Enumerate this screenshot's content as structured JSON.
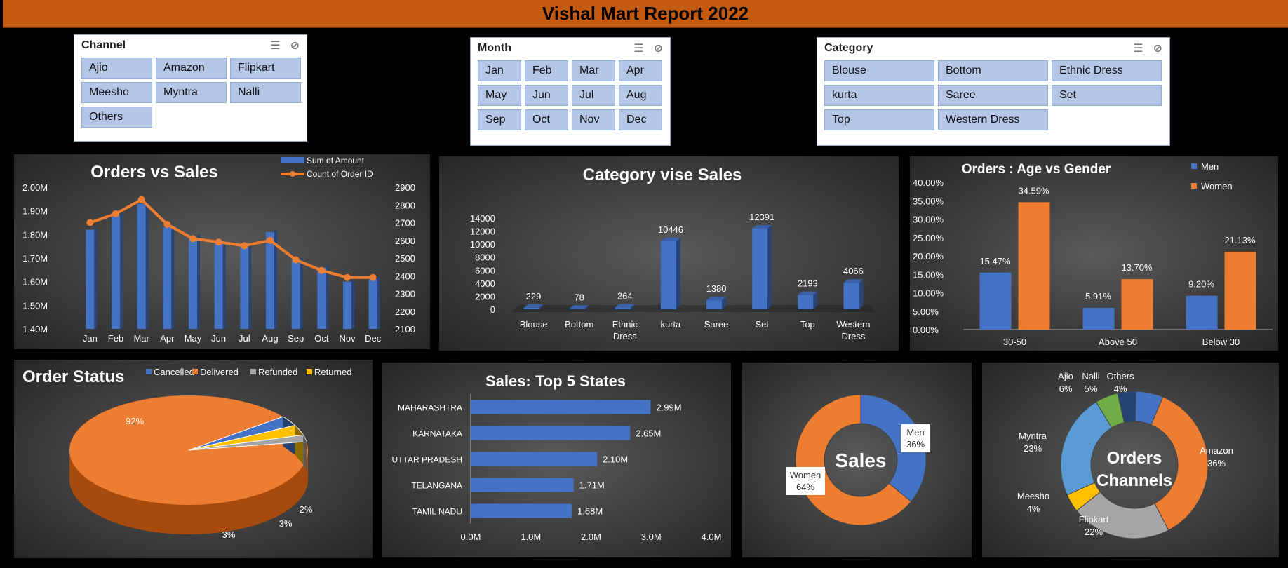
{
  "header": {
    "title": "Vishal Mart Report 2022"
  },
  "slicers": {
    "channel": {
      "title": "Channel",
      "items": [
        "Ajio",
        "Amazon",
        "Flipkart",
        "Meesho",
        "Myntra",
        "Nalli",
        "Others"
      ]
    },
    "month": {
      "title": "Month",
      "items": [
        "Jan",
        "Feb",
        "Mar",
        "Apr",
        "May",
        "Jun",
        "Jul",
        "Aug",
        "Sep",
        "Oct",
        "Nov",
        "Dec"
      ]
    },
    "category": {
      "title": "Category",
      "items": [
        "Blouse",
        "Bottom",
        "Ethnic Dress",
        "kurta",
        "Saree",
        "Set",
        "Top",
        "Western Dress"
      ]
    }
  },
  "chart_data": [
    {
      "id": "orders_vs_sales",
      "type": "bar",
      "title": "Orders vs Sales",
      "categories": [
        "Jan",
        "Feb",
        "Mar",
        "Apr",
        "May",
        "Jun",
        "Jul",
        "Aug",
        "Sep",
        "Oct",
        "Nov",
        "Dec"
      ],
      "series": [
        {
          "name": "Sum of Amount",
          "type": "bar",
          "axis": "left",
          "color": "#4472C4",
          "values": [
            1.82,
            1.88,
            1.93,
            1.83,
            1.79,
            1.76,
            1.75,
            1.81,
            1.69,
            1.66,
            1.6,
            1.61
          ]
        },
        {
          "name": "Count of Order ID",
          "type": "line",
          "axis": "right",
          "color": "#ED7D31",
          "values": [
            2700,
            2750,
            2830,
            2690,
            2610,
            2590,
            2570,
            2600,
            2490,
            2430,
            2390,
            2390
          ]
        }
      ],
      "left_ticks": [
        "2.00M",
        "1.90M",
        "1.80M",
        "1.70M",
        "1.60M",
        "1.50M",
        "1.40M"
      ],
      "left_range": [
        1.4,
        2.0
      ],
      "right_ticks": [
        "2900",
        "2800",
        "2700",
        "2600",
        "2500",
        "2400",
        "2300",
        "2200",
        "2100"
      ],
      "right_range": [
        2100,
        2900
      ]
    },
    {
      "id": "category_sales",
      "type": "bar",
      "title": "Category vise Sales",
      "categories": [
        "Blouse",
        "Bottom",
        "Ethnic Dress",
        "kurta",
        "Saree",
        "Set",
        "Top",
        "Western Dress"
      ],
      "values": [
        229,
        78,
        264,
        10446,
        1380,
        12391,
        2193,
        4066
      ],
      "y_ticks": [
        "14000",
        "12000",
        "10000",
        "8000",
        "6000",
        "4000",
        "2000",
        "0"
      ],
      "ylim": [
        0,
        14000
      ],
      "color": "#4472C4"
    },
    {
      "id": "age_gender",
      "type": "bar",
      "title": "Orders : Age vs Gender",
      "categories": [
        "30-50",
        "Above 50",
        "Below 30"
      ],
      "series": [
        {
          "name": "Men",
          "color": "#4472C4",
          "values": [
            15.47,
            5.91,
            9.2
          ],
          "labels": [
            "15.47%",
            "5.91%",
            "9.20%"
          ]
        },
        {
          "name": "Women",
          "color": "#ED7D31",
          "values": [
            34.59,
            13.7,
            21.13
          ],
          "labels": [
            "34.59%",
            "13.70%",
            "21.13%"
          ]
        }
      ],
      "y_ticks": [
        "40.00%",
        "35.00%",
        "30.00%",
        "25.00%",
        "20.00%",
        "15.00%",
        "10.00%",
        "5.00%",
        "0.00%"
      ],
      "ylim": [
        0,
        40
      ]
    },
    {
      "id": "order_status",
      "type": "pie",
      "title": "Order Status",
      "legend": [
        "Cancelled",
        "Delivered",
        "Refunded",
        "Returned"
      ],
      "colors": [
        "#4472C4",
        "#ED7D31",
        "#A5A5A5",
        "#FFC000"
      ],
      "values": [
        3,
        92,
        2,
        3
      ],
      "labels": [
        "3%",
        "92%",
        "2%",
        "3%"
      ]
    },
    {
      "id": "top_states",
      "type": "bar",
      "title": "Sales: Top 5 States",
      "categories": [
        "MAHARASHTRA",
        "KARNATAKA",
        "UTTAR PRADESH",
        "TELANGANA",
        "TAMIL NADU"
      ],
      "values": [
        2.99,
        2.65,
        2.1,
        1.71,
        1.68
      ],
      "labels": [
        "2.99M",
        "2.65M",
        "2.10M",
        "1.71M",
        "1.68M"
      ],
      "x_ticks": [
        "0.0M",
        "1.0M",
        "2.0M",
        "3.0M",
        "4.0M"
      ],
      "xlim": [
        0,
        4
      ],
      "color": "#4472C4"
    },
    {
      "id": "sales_gender",
      "type": "pie",
      "title": "Sales",
      "categories": [
        "Men",
        "Women"
      ],
      "values": [
        36,
        64
      ],
      "labels": [
        "36%",
        "64%"
      ],
      "colors": [
        "#4472C4",
        "#ED7D31"
      ]
    },
    {
      "id": "orders_channels",
      "type": "pie",
      "title": "Orders Channels",
      "categories": [
        "Ajio",
        "Amazon",
        "Flipkart",
        "Meesho",
        "Myntra",
        "Nalli",
        "Others"
      ],
      "values": [
        6,
        36,
        22,
        4,
        23,
        5,
        4
      ],
      "labels": [
        "6%",
        "36%",
        "22%",
        "4%",
        "23%",
        "5%",
        "4%"
      ],
      "colors": [
        "#4472C4",
        "#ED7D31",
        "#A5A5A5",
        "#FFC000",
        "#5B9BD5",
        "#70AD47",
        "#264478"
      ]
    }
  ]
}
